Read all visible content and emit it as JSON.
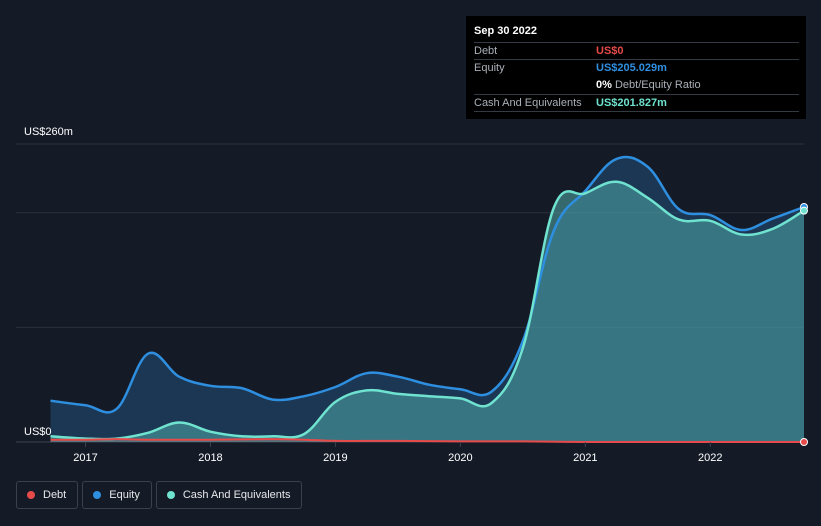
{
  "colors": {
    "debt": "#e64a4a",
    "equity": "#2e8fe0",
    "cash": "#6fe3d0",
    "background": "#151b26"
  },
  "tooltip": {
    "date": "Sep 30 2022",
    "debt_label": "Debt",
    "debt_value": "US$0",
    "equity_label": "Equity",
    "equity_value": "US$205.029m",
    "ratio_pct": "0%",
    "ratio_label": "Debt/Equity Ratio",
    "cash_label": "Cash And Equivalents",
    "cash_value": "US$201.827m"
  },
  "chart_data": {
    "type": "area",
    "title": "",
    "xlabel": "",
    "ylabel": "",
    "y_top_label": "US$260m",
    "y_bottom_label": "US$0",
    "ylim": [
      0,
      260
    ],
    "xlim": [
      2016.7,
      2022.75
    ],
    "x_ticks": [
      {
        "value": 2017,
        "label": "2017"
      },
      {
        "value": 2018,
        "label": "2018"
      },
      {
        "value": 2019,
        "label": "2019"
      },
      {
        "value": 2020,
        "label": "2020"
      },
      {
        "value": 2021,
        "label": "2021"
      },
      {
        "value": 2022,
        "label": "2022"
      }
    ],
    "grid_values": [
      0,
      100,
      200,
      260
    ],
    "series": [
      {
        "name": "Equity",
        "key": "equity",
        "points": [
          [
            2016.72,
            36
          ],
          [
            2017.0,
            32
          ],
          [
            2017.25,
            29
          ],
          [
            2017.5,
            77
          ],
          [
            2017.75,
            57
          ],
          [
            2018.0,
            49
          ],
          [
            2018.25,
            47
          ],
          [
            2018.5,
            37
          ],
          [
            2018.75,
            40
          ],
          [
            2019.0,
            48
          ],
          [
            2019.25,
            60
          ],
          [
            2019.5,
            57
          ],
          [
            2019.75,
            50
          ],
          [
            2020.0,
            46
          ],
          [
            2020.25,
            44
          ],
          [
            2020.5,
            88
          ],
          [
            2020.75,
            185
          ],
          [
            2021.0,
            219
          ],
          [
            2021.25,
            247
          ],
          [
            2021.5,
            240
          ],
          [
            2021.75,
            203
          ],
          [
            2022.0,
            198
          ],
          [
            2022.25,
            185
          ],
          [
            2022.5,
            195
          ],
          [
            2022.75,
            205.029
          ]
        ]
      },
      {
        "name": "Cash And Equivalents",
        "key": "cash",
        "points": [
          [
            2016.72,
            5
          ],
          [
            2017.0,
            3
          ],
          [
            2017.25,
            3
          ],
          [
            2017.5,
            8
          ],
          [
            2017.75,
            17
          ],
          [
            2018.0,
            9
          ],
          [
            2018.25,
            5
          ],
          [
            2018.5,
            5
          ],
          [
            2018.75,
            7
          ],
          [
            2019.0,
            35
          ],
          [
            2019.25,
            45
          ],
          [
            2019.5,
            42
          ],
          [
            2019.75,
            40
          ],
          [
            2020.0,
            38
          ],
          [
            2020.25,
            34
          ],
          [
            2020.5,
            82
          ],
          [
            2020.75,
            205
          ],
          [
            2021.0,
            217
          ],
          [
            2021.25,
            227
          ],
          [
            2021.5,
            213
          ],
          [
            2021.75,
            194
          ],
          [
            2022.0,
            193
          ],
          [
            2022.25,
            181
          ],
          [
            2022.5,
            186
          ],
          [
            2022.75,
            201.827
          ]
        ]
      },
      {
        "name": "Debt",
        "key": "debt",
        "points": [
          [
            2016.72,
            2
          ],
          [
            2017.0,
            2
          ],
          [
            2017.25,
            2.5
          ],
          [
            2017.5,
            2
          ],
          [
            2018.0,
            2
          ],
          [
            2018.5,
            2.5
          ],
          [
            2018.75,
            2
          ],
          [
            2019.0,
            1
          ],
          [
            2019.5,
            1
          ],
          [
            2020.0,
            0.5
          ],
          [
            2020.5,
            0.5
          ],
          [
            2021.0,
            0
          ],
          [
            2022.0,
            0
          ],
          [
            2022.75,
            0
          ]
        ]
      }
    ],
    "legend": [
      {
        "name": "Debt",
        "key": "debt"
      },
      {
        "name": "Equity",
        "key": "equity"
      },
      {
        "name": "Cash And Equivalents",
        "key": "cash"
      }
    ]
  }
}
